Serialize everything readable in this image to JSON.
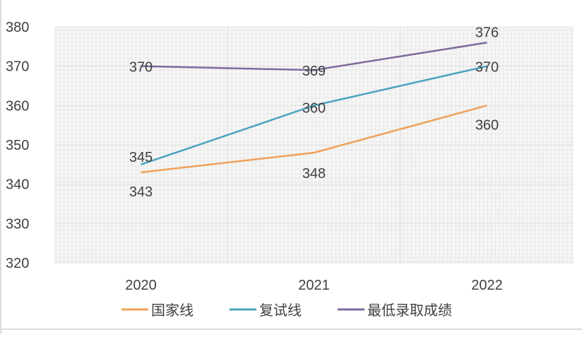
{
  "chart_data": {
    "type": "line",
    "title": "",
    "xlabel": "",
    "ylabel": "",
    "categories": [
      "2020",
      "2021",
      "2022"
    ],
    "ylim": [
      320,
      380
    ],
    "yticks": [
      "320",
      "330",
      "340",
      "350",
      "360",
      "370",
      "380"
    ],
    "grid": true,
    "legend_position": "bottom",
    "series": [
      {
        "name": "国家线",
        "color": "#F0A05A",
        "values": [
          343,
          348,
          360
        ]
      },
      {
        "name": "复试线",
        "color": "#4AA3BF",
        "values": [
          345,
          360,
          370
        ]
      },
      {
        "name": "最低录取成绩",
        "color": "#7E6A9E",
        "values": [
          370,
          369,
          376
        ]
      }
    ]
  }
}
